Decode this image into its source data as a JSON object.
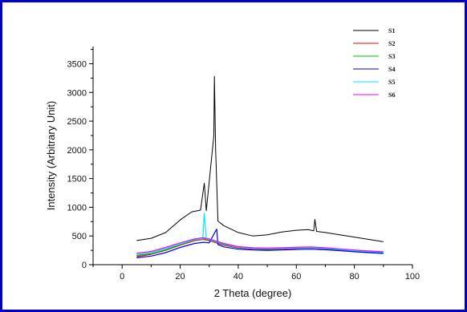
{
  "chart_data": {
    "type": "line",
    "title": "",
    "xlabel": "2 Theta (degree)",
    "ylabel": "Intensity (Arbitrary Unit)",
    "xlim": [
      -10,
      100
    ],
    "ylim": [
      0,
      3800
    ],
    "xticks": [
      0,
      20,
      40,
      60,
      80,
      100
    ],
    "yticks": [
      0,
      500,
      1000,
      1500,
      2000,
      2500,
      3000,
      3500
    ],
    "grid": false,
    "legend_position": "top-right",
    "series": [
      {
        "name": "S1",
        "color": "#000000",
        "x": [
          5,
          10,
          15,
          20,
          24,
          27,
          28.3,
          29,
          31.6,
          31.8,
          32.2,
          33,
          35,
          40,
          45,
          50,
          55,
          60,
          64,
          66,
          66.4,
          67,
          70,
          75,
          80,
          85,
          90
        ],
        "y": [
          420,
          460,
          560,
          780,
          920,
          950,
          1420,
          940,
          2250,
          3280,
          2020,
          760,
          680,
          560,
          500,
          520,
          570,
          600,
          610,
          590,
          790,
          580,
          560,
          520,
          480,
          440,
          400
        ]
      },
      {
        "name": "S2",
        "color": "#ff0000",
        "x": [
          5,
          10,
          15,
          20,
          25,
          28,
          30,
          35,
          40,
          45,
          50,
          55,
          60,
          65,
          70,
          75,
          80,
          85,
          90
        ],
        "y": [
          140,
          180,
          250,
          340,
          420,
          440,
          420,
          340,
          290,
          270,
          265,
          270,
          285,
          290,
          275,
          255,
          235,
          220,
          205
        ]
      },
      {
        "name": "S3",
        "color": "#00c000",
        "x": [
          5,
          10,
          15,
          20,
          25,
          28,
          30,
          35,
          40,
          45,
          50,
          55,
          60,
          65,
          70,
          75,
          80,
          85,
          90
        ],
        "y": [
          160,
          190,
          260,
          350,
          430,
          450,
          430,
          350,
          300,
          280,
          275,
          280,
          290,
          295,
          280,
          260,
          240,
          225,
          210
        ]
      },
      {
        "name": "S4",
        "color": "#0000ff",
        "x": [
          5,
          10,
          15,
          20,
          25,
          28,
          30,
          32.6,
          33,
          35,
          40,
          45,
          50,
          55,
          60,
          65,
          70,
          75,
          80,
          85,
          90
        ],
        "y": [
          120,
          150,
          210,
          300,
          370,
          390,
          380,
          620,
          350,
          310,
          270,
          255,
          250,
          255,
          265,
          270,
          260,
          245,
          225,
          210,
          195
        ]
      },
      {
        "name": "S5",
        "color": "#00e5ff",
        "x": [
          5,
          10,
          15,
          20,
          25,
          27.8,
          28.3,
          29,
          30,
          35,
          40,
          45,
          50,
          55,
          60,
          65,
          70,
          75,
          80,
          85,
          90
        ],
        "y": [
          180,
          210,
          280,
          360,
          440,
          450,
          900,
          450,
          440,
          360,
          305,
          285,
          280,
          285,
          295,
          300,
          285,
          265,
          245,
          230,
          215
        ]
      },
      {
        "name": "S6",
        "color": "#ff00ff",
        "x": [
          5,
          10,
          15,
          20,
          25,
          28,
          30,
          35,
          40,
          45,
          50,
          55,
          60,
          65,
          70,
          75,
          80,
          85,
          90
        ],
        "y": [
          200,
          230,
          300,
          380,
          450,
          470,
          450,
          370,
          315,
          295,
          290,
          295,
          305,
          310,
          295,
          275,
          255,
          240,
          225
        ]
      }
    ]
  }
}
